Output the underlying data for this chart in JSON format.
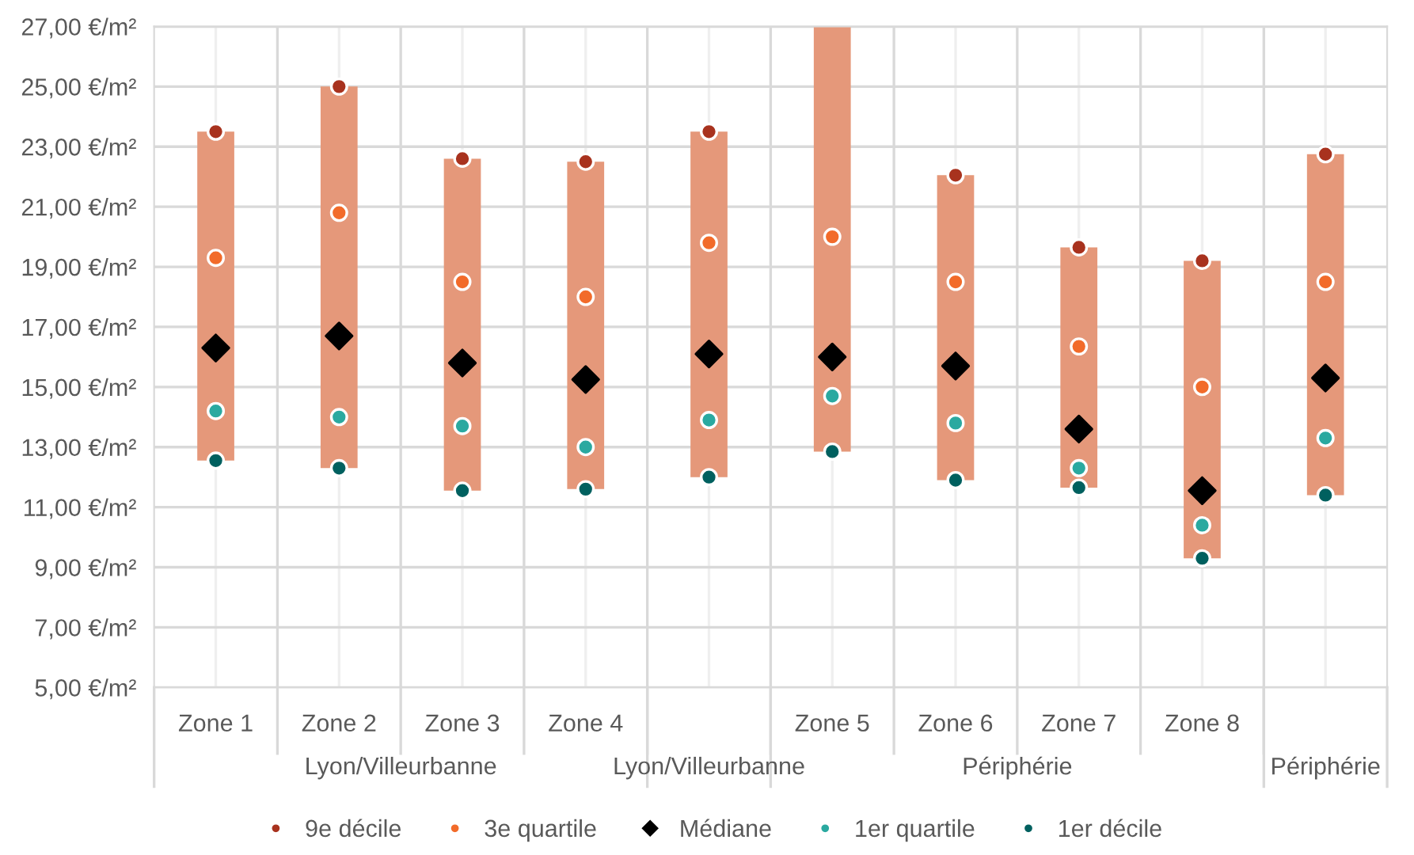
{
  "chart_data": {
    "type": "scatter",
    "categories": [
      "Zone 1",
      "Zone 2",
      "Zone 3",
      "Zone 4",
      null,
      "Zone 5",
      "Zone 6",
      "Zone 7",
      "Zone 8",
      null
    ],
    "series": [
      {
        "type": "bar",
        "color": "#e5987a",
        "base": [
          12.55,
          12.3,
          11.55,
          11.6,
          12.0,
          12.85,
          11.9,
          11.65,
          9.3,
          11.4
        ],
        "values": [
          10.95,
          12.7,
          11.05,
          10.9,
          11.5,
          14.15,
          10.15,
          8.0,
          9.9,
          11.35
        ]
      },
      {
        "name": "9e décile",
        "color": "#a8321e",
        "marker": "circle",
        "values": [
          23.5,
          25.0,
          22.6,
          22.5,
          23.5,
          null,
          22.05,
          19.65,
          19.2,
          22.75
        ]
      },
      {
        "name": "3e quartile",
        "color": "#f26b2a",
        "marker": "circle",
        "values": [
          19.3,
          20.8,
          18.5,
          18.0,
          19.8,
          20.0,
          18.5,
          16.35,
          15.0,
          18.5
        ]
      },
      {
        "name": "Médiane",
        "color": "#000000",
        "marker": "diamond",
        "values": [
          16.3,
          16.7,
          15.8,
          15.25,
          16.1,
          16.0,
          15.7,
          13.6,
          11.55,
          15.3
        ]
      },
      {
        "name": "1er quartile",
        "color": "#2aa9a0",
        "marker": "circle",
        "values": [
          14.2,
          14.0,
          13.7,
          13.0,
          13.9,
          14.7,
          13.8,
          12.3,
          10.4,
          13.3
        ]
      },
      {
        "name": "1er décile",
        "color": "#00605f",
        "marker": "circle",
        "values": [
          12.55,
          12.3,
          11.55,
          11.6,
          12.0,
          12.85,
          11.9,
          11.65,
          9.3,
          11.4
        ]
      }
    ],
    "annotations": [
      "Lyon/Villeurbanne",
      "Lyon/Villeurbanne",
      "Périphérie",
      "Périphérie"
    ],
    "ylim": [
      5,
      27
    ],
    "yticks": [
      {
        "value": 5,
        "label": "5,00 €/m²"
      },
      {
        "value": 7,
        "label": "7,00 €/m²"
      },
      {
        "value": 9,
        "label": "9,00 €/m²"
      },
      {
        "value": 11,
        "label": "11,00 €/m²"
      },
      {
        "value": 13,
        "label": "13,00 €/m²"
      },
      {
        "value": 15,
        "label": "15,00 €/m²"
      },
      {
        "value": 17,
        "label": "17,00 €/m²"
      },
      {
        "value": 19,
        "label": "19,00 €/m²"
      },
      {
        "value": 21,
        "label": "21,00 €/m²"
      },
      {
        "value": 23,
        "label": "23,00 €/m²"
      },
      {
        "value": 25,
        "label": "25,00 €/m²"
      },
      {
        "value": 27,
        "label": "27,00 €/m²"
      }
    ],
    "grid": true,
    "legend": "bottom"
  }
}
